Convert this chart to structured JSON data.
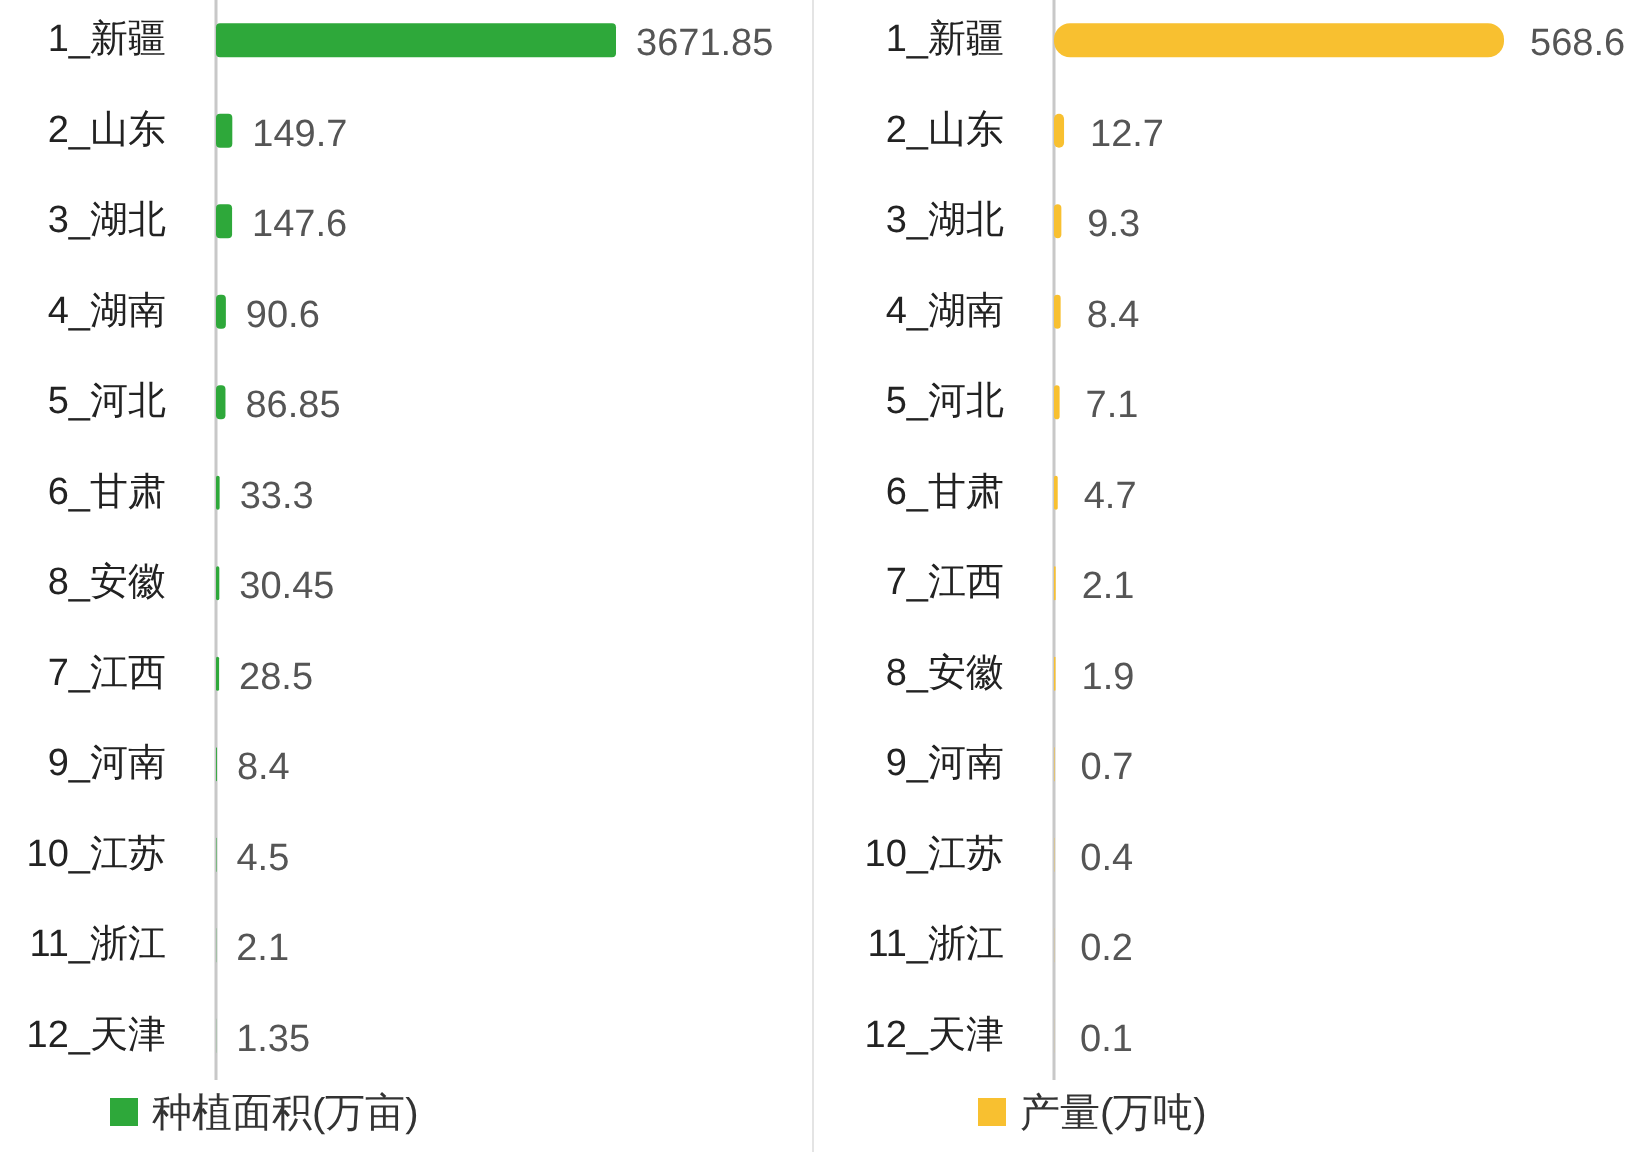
{
  "chart_data": [
    {
      "type": "bar",
      "orientation": "horizontal",
      "categories": [
        "1_新疆",
        "2_山东",
        "3_湖北",
        "4_湖南",
        "5_河北",
        "6_甘肃",
        "8_安徽",
        "7_江西",
        "9_河南",
        "10_江苏",
        "11_浙江",
        "12_天津"
      ],
      "series": [
        {
          "name": "种植面积(万亩)",
          "color": "#2ea83a",
          "values": [
            3671.85,
            149.7,
            147.6,
            90.6,
            86.85,
            33.3,
            30.45,
            28.5,
            8.4,
            4.5,
            2.1,
            1.35
          ]
        }
      ],
      "data_labels": true,
      "legend": "bottom",
      "tick_labels": "y"
    },
    {
      "type": "bar",
      "orientation": "horizontal",
      "categories": [
        "1_新疆",
        "2_山东",
        "3_湖北",
        "4_湖南",
        "5_河北",
        "6_甘肃",
        "7_江西",
        "8_安徽",
        "9_河南",
        "10_江苏",
        "11_浙江",
        "12_天津"
      ],
      "series": [
        {
          "name": "产量(万吨)",
          "color": "#f8c030",
          "values": [
            568.6,
            12.7,
            9.3,
            8.4,
            7.1,
            4.7,
            2.1,
            1.9,
            0.7,
            0.4,
            0.2,
            0.1
          ]
        }
      ],
      "data_labels": true,
      "legend": "bottom",
      "tick_labels": "y"
    }
  ]
}
